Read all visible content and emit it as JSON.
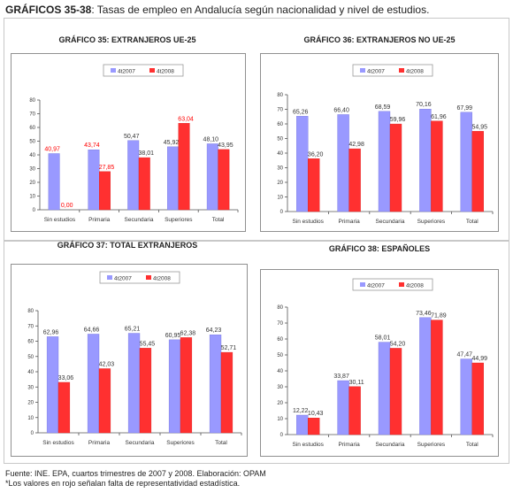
{
  "header": {
    "title_bold": "GRÁFICOS 35-38",
    "title_rest": ": Tasas de empleo en Andalucía según nacionalidad y nivel de estudios."
  },
  "footer": {
    "source": "Fuente: INE. EPA, cuartos trimestres de 2007 y 2008. Elaboración: OPAM",
    "note": "*Los valores en rojo señalan falta de representatividad  estadística."
  },
  "colors": {
    "series_2007": "#9999ff",
    "series_2008": "#ff3030",
    "unreliable_label": "#ff0000",
    "label": "#333333"
  },
  "chart_data": [
    {
      "type": "bar",
      "title": "GRÁFICO 35: EXTRANJEROS UE-25",
      "categories": [
        "Sin estudios",
        "Primaria",
        "Secundaria",
        "Superiores",
        "Total"
      ],
      "series": [
        {
          "name": "4t2007",
          "values": [
            40.97,
            43.74,
            50.47,
            45.92,
            48.1
          ],
          "labels": [
            "40,97",
            "43,74",
            "50,47",
            "45,92",
            "48,10"
          ],
          "unreliable": [
            true,
            true,
            false,
            false,
            false
          ]
        },
        {
          "name": "4t2008",
          "values": [
            0.0,
            27.85,
            38.01,
            63.04,
            43.95
          ],
          "labels": [
            "0,00",
            "27,85",
            "38,01",
            "63,04",
            "43,95"
          ],
          "unreliable": [
            true,
            true,
            false,
            true,
            false
          ]
        }
      ],
      "ylim": [
        0,
        80
      ],
      "yticks": [
        0,
        10,
        20,
        30,
        40,
        50,
        60,
        70,
        80
      ],
      "grid": false,
      "legend": "top-center"
    },
    {
      "type": "bar",
      "title": "GRÁFICO 36: EXTRANJEROS NO UE-25",
      "categories": [
        "Sin estudios",
        "Primaria",
        "Secundaria",
        "Superiores",
        "Total"
      ],
      "series": [
        {
          "name": "4t2007",
          "values": [
            65.26,
            66.4,
            68.59,
            70.16,
            67.99
          ],
          "labels": [
            "65,26",
            "66,40",
            "68,59",
            "70,16",
            "67,99"
          ],
          "unreliable": [
            false,
            false,
            false,
            false,
            false
          ]
        },
        {
          "name": "4t2008",
          "values": [
            36.2,
            42.98,
            59.96,
            61.96,
            54.95
          ],
          "labels": [
            "36,20",
            "42,98",
            "59,96",
            "61,96",
            "54,95"
          ],
          "unreliable": [
            false,
            false,
            false,
            false,
            false
          ]
        }
      ],
      "ylim": [
        0,
        80
      ],
      "yticks": [
        0,
        10,
        20,
        30,
        40,
        50,
        60,
        70,
        80
      ],
      "grid": false,
      "legend": "top-center"
    },
    {
      "type": "bar",
      "title": "GRÁFICO 37: TOTAL EXTRANJEROS",
      "categories": [
        "Sin estudios",
        "Primaria",
        "Secundaria",
        "Superiores",
        "Total"
      ],
      "series": [
        {
          "name": "4t2007",
          "values": [
            62.96,
            64.66,
            65.21,
            60.95,
            64.23
          ],
          "labels": [
            "62,96",
            "64,66",
            "65,21",
            "60,95",
            "64,23"
          ],
          "unreliable": [
            false,
            false,
            false,
            false,
            false
          ]
        },
        {
          "name": "4t2008",
          "values": [
            33.06,
            42.03,
            55.45,
            62.38,
            52.71
          ],
          "labels": [
            "33,06",
            "42,03",
            "55,45",
            "62,38",
            "52,71"
          ],
          "unreliable": [
            false,
            false,
            false,
            false,
            false
          ]
        }
      ],
      "ylim": [
        0,
        80
      ],
      "yticks": [
        0,
        10,
        20,
        30,
        40,
        50,
        60,
        70,
        80
      ],
      "grid": false,
      "legend": "top-center"
    },
    {
      "type": "bar",
      "title": "GRÁFICO 38: ESPAÑOLES",
      "categories": [
        "Sin estudios",
        "Primaria",
        "Secundaria",
        "Superiores",
        "Total"
      ],
      "series": [
        {
          "name": "4t2007",
          "values": [
            12.22,
            33.87,
            58.01,
            73.46,
            47.47
          ],
          "labels": [
            "12,22",
            "33,87",
            "58,01",
            "73,46",
            "47,47"
          ],
          "unreliable": [
            false,
            false,
            false,
            false,
            false
          ]
        },
        {
          "name": "4t2008",
          "values": [
            10.43,
            30.11,
            54.2,
            71.89,
            44.99
          ],
          "labels": [
            "10,43",
            "30,11",
            "54,20",
            "71,89",
            "44,99"
          ],
          "unreliable": [
            false,
            false,
            false,
            false,
            false
          ]
        }
      ],
      "ylim": [
        0,
        80
      ],
      "yticks": [
        0,
        10,
        20,
        30,
        40,
        50,
        60,
        70,
        80
      ],
      "grid": false,
      "legend": "top-center"
    }
  ]
}
